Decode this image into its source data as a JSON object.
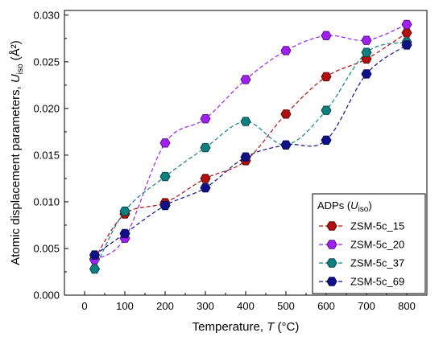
{
  "chart_data": {
    "type": "line",
    "x_axis": {
      "title_prefix": "Temperature,",
      "title_symbol": "T",
      "title_unit": "(°C)",
      "range": [
        -50,
        850
      ],
      "ticks": [
        0,
        100,
        200,
        300,
        400,
        500,
        600,
        700,
        800
      ],
      "tick_labels": [
        "0",
        "100",
        "200",
        "300",
        "400",
        "500",
        "600",
        "700",
        "800"
      ]
    },
    "y_axis": {
      "title_prefix": "Atomic displacement parameters,",
      "title_symbol": "U",
      "title_sub": "iso",
      "title_unit": "(Å²)",
      "range": [
        0,
        0.0305
      ],
      "ticks": [
        0,
        0.005,
        0.01,
        0.015,
        0.02,
        0.025,
        0.03
      ],
      "tick_labels": [
        "0.000",
        "0.005",
        "0.010",
        "0.015",
        "0.020",
        "0.025",
        "0.030"
      ]
    },
    "legend": {
      "title_prefix": "ADPs (",
      "title_symbol": "U",
      "title_sub": "iso",
      "title_suffix": ")",
      "placement": "bottom-right"
    },
    "series": [
      {
        "name": "ZSM-5c_15",
        "color": "#b01010",
        "x": [
          25,
          100,
          200,
          300,
          400,
          500,
          600,
          700,
          800
        ],
        "y": [
          0.0039,
          0.0087,
          0.0099,
          0.0125,
          0.0144,
          0.0194,
          0.0234,
          0.0253,
          0.0281
        ]
      },
      {
        "name": "ZSM-5c_20",
        "color": "#a020f0",
        "x": [
          25,
          100,
          200,
          300,
          400,
          500,
          600,
          700,
          800
        ],
        "y": [
          0.0038,
          0.0061,
          0.0163,
          0.0189,
          0.0231,
          0.0262,
          0.0278,
          0.0273,
          0.029
        ]
      },
      {
        "name": "ZSM-5c_37",
        "color": "#0f8080",
        "x": [
          25,
          100,
          200,
          300,
          400,
          500,
          600,
          700,
          800
        ],
        "y": [
          0.0028,
          0.009,
          0.0127,
          0.0158,
          0.0186,
          0.0161,
          0.0198,
          0.026,
          0.0271
        ]
      },
      {
        "name": "ZSM-5c_69",
        "color": "#10108a",
        "x": [
          25,
          100,
          200,
          300,
          400,
          500,
          600,
          700,
          800
        ],
        "y": [
          0.0043,
          0.0066,
          0.0096,
          0.0115,
          0.0148,
          0.0161,
          0.0166,
          0.0237,
          0.0268
        ]
      }
    ]
  }
}
